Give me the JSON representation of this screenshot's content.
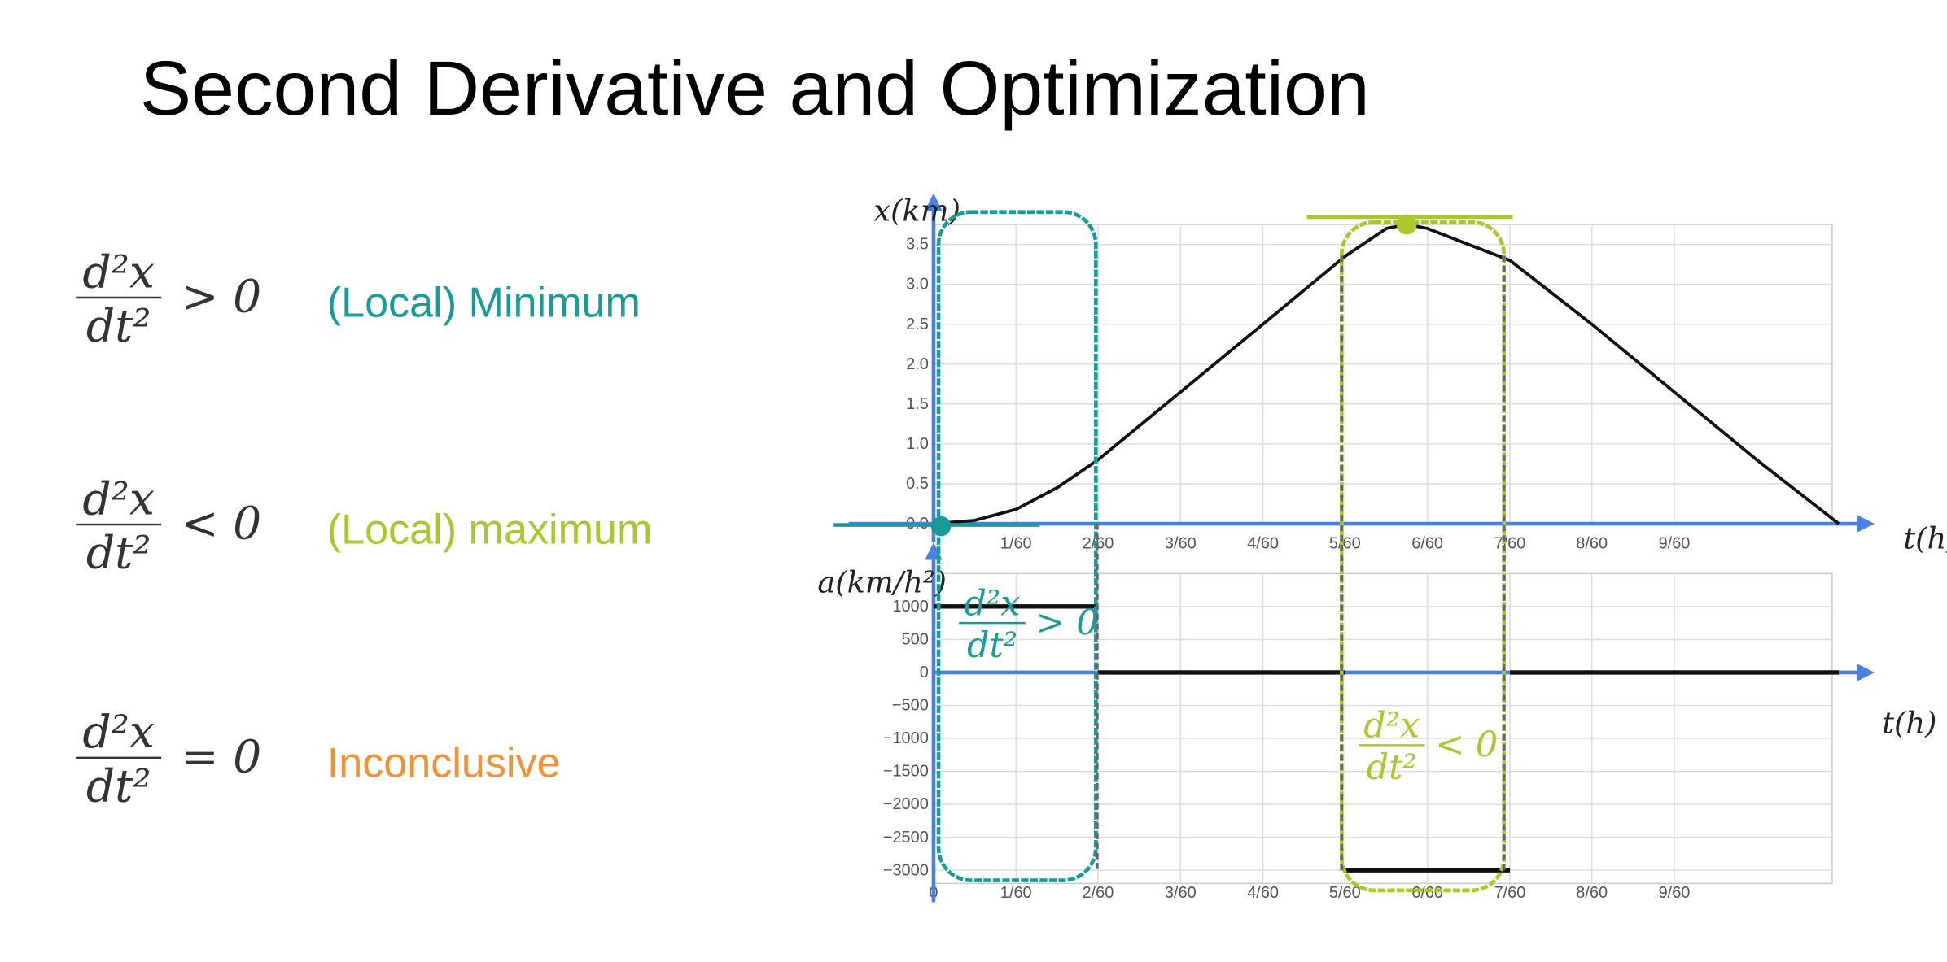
{
  "title": "Second Derivative and Optimization",
  "rules": [
    {
      "numerator": "d²x",
      "denominator": "dt²",
      "relation": "> 0",
      "label": "(Local) Minimum",
      "color": "#1b9a9a"
    },
    {
      "numerator": "d²x",
      "denominator": "dt²",
      "relation": "< 0",
      "label": "(Local) maximum",
      "color": "#a9c82c"
    },
    {
      "numerator": "d²x",
      "denominator": "dt²",
      "relation": "= 0",
      "label": "Inconclusive",
      "color": "#f0923a"
    }
  ],
  "chart_data": [
    {
      "type": "line",
      "y_label": "x(km)",
      "x_label": "t(h)",
      "x": [
        0,
        0.0083,
        0.0167,
        0.025,
        0.0333,
        0.05,
        0.0667,
        0.0833,
        0.0917,
        0.0958,
        0.1,
        0.1083,
        0.1167,
        0.1333,
        0.15,
        0.1667,
        0.1833
      ],
      "series": [
        {
          "color": "#111111",
          "values": [
            0,
            0.04,
            0.18,
            0.45,
            0.8,
            1.65,
            2.5,
            3.35,
            3.7,
            3.75,
            3.7,
            3.5,
            3.3,
            2.5,
            1.65,
            0.8,
            0
          ]
        }
      ],
      "markers": [
        {
          "x": 0,
          "y": 0,
          "color": "#1b9a9a"
        },
        {
          "x": 0.0958,
          "y": 3.75,
          "color": "#a9c82c"
        }
      ],
      "xlim": [
        0,
        0.185
      ],
      "ylim": [
        0,
        3.75
      ],
      "xticks": [
        {
          "value": 0.0167,
          "label": "1/60"
        },
        {
          "value": 0.0333,
          "label": "2/60"
        },
        {
          "value": 0.05,
          "label": "3/60"
        },
        {
          "value": 0.0667,
          "label": "4/60"
        },
        {
          "value": 0.0833,
          "label": "5/60"
        },
        {
          "value": 0.1,
          "label": "6/60"
        },
        {
          "value": 0.1167,
          "label": "7/60"
        },
        {
          "value": 0.1333,
          "label": "8/60"
        },
        {
          "value": 0.15,
          "label": "9/60"
        }
      ],
      "yticks": [
        {
          "value": 0,
          "label": "0.0"
        },
        0.5,
        {
          "value": 1,
          "label": "1.0"
        },
        1.5,
        {
          "value": 2,
          "label": "2.0"
        },
        2.5,
        {
          "value": 3,
          "label": "3.0"
        },
        3.5
      ],
      "grid": true
    },
    {
      "type": "line",
      "y_label": "a(km/h²)",
      "x_label": "t(h)",
      "x": [
        0,
        0.0333,
        0.0333,
        0.0333,
        0.0833,
        0.0833,
        0.0833,
        0.1167,
        0.1167,
        0.1167,
        0.1833
      ],
      "series": [
        {
          "color": "#111111",
          "values": [
            1000,
            1000,
            null,
            0,
            0,
            null,
            -3000,
            -3000,
            null,
            0,
            0
          ]
        }
      ],
      "annotations": [
        {
          "numerator": "d²x",
          "denominator": "dt²",
          "relation": "> 0",
          "color": "#1b9a9a"
        },
        {
          "numerator": "d²x",
          "denominator": "dt²",
          "relation": "< 0",
          "color": "#a9c82c"
        }
      ],
      "xlim": [
        0,
        0.185
      ],
      "ylim": [
        -3200,
        1500
      ],
      "xticks": [
        0,
        {
          "value": 0.0167,
          "label": "1/60"
        },
        {
          "value": 0.0333,
          "label": "2/60"
        },
        {
          "value": 0.05,
          "label": "3/60"
        },
        {
          "value": 0.0667,
          "label": "4/60"
        },
        {
          "value": 0.0833,
          "label": "5/60"
        },
        {
          "value": 0.1,
          "label": "6/60"
        },
        {
          "value": 0.1167,
          "label": "7/60"
        },
        {
          "value": 0.1333,
          "label": "8/60"
        },
        {
          "value": 0.15,
          "label": "9/60"
        }
      ],
      "yticks": [
        1000,
        500,
        0,
        {
          "value": -500,
          "label": "−500"
        },
        {
          "value": -1000,
          "label": "−1000"
        },
        {
          "value": -1500,
          "label": "−1500"
        },
        {
          "value": -2000,
          "label": "−2000"
        },
        {
          "value": -2500,
          "label": "−2500"
        },
        {
          "value": -3000,
          "label": "−3000"
        }
      ],
      "grid": true
    }
  ]
}
